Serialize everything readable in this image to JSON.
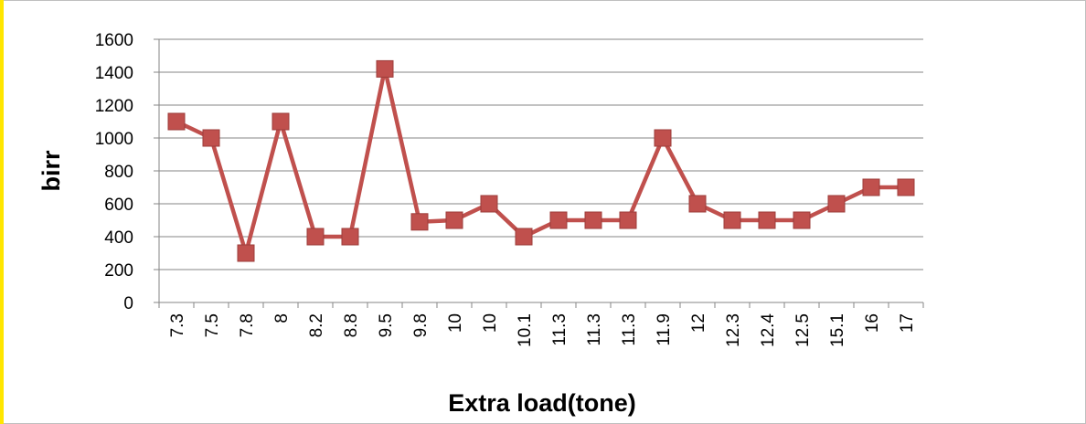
{
  "colors": {
    "series": "#c0504d",
    "marker_edge": "#9d3c3a",
    "grid": "#868686",
    "frame_left": "#ffe600",
    "frame_border": "#bfbfbf"
  },
  "chart_data": {
    "type": "line",
    "title": "",
    "xlabel": "Extra load(tone)",
    "ylabel": "birr",
    "ylim": [
      0,
      1600
    ],
    "yticks": [
      "0",
      "200",
      "400",
      "600",
      "800",
      "1000",
      "1200",
      "1400",
      "1600"
    ],
    "grid": true,
    "legend": "none",
    "categories": [
      "7.3",
      "7.5",
      "7.8",
      "8",
      "8.2",
      "8.8",
      "9.5",
      "9.8",
      "10",
      "10",
      "10.1",
      "11.3",
      "11.3",
      "11.3",
      "11.9",
      "12",
      "12.3",
      "12.4",
      "12.5",
      "15.1",
      "16",
      "17"
    ],
    "series": [
      {
        "values": [
          1100,
          1000,
          300,
          1100,
          400,
          400,
          1420,
          490,
          500,
          600,
          400,
          500,
          500,
          500,
          1000,
          600,
          500,
          500,
          500,
          600,
          700,
          700
        ],
        "marker": "square"
      }
    ]
  }
}
